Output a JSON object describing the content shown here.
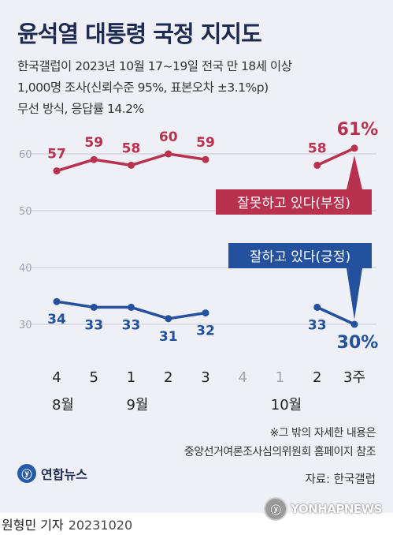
{
  "title": "윤석열 대통령 국정 지지도",
  "subtitle_lines": [
    "한국갤럽이 2023년 10월 17~19일 전국 만 18세 이상",
    "1,000명 조사(신뢰수준 95%, 표본오차 ±3.1%p)",
    "무선 방식, 응답률 14.2%"
  ],
  "chart_data": {
    "type": "line",
    "yticks": [
      30,
      40,
      50,
      60
    ],
    "ylim": [
      27,
      66
    ],
    "grid": true,
    "x_labels": [
      "4",
      "5",
      "1",
      "2",
      "3",
      "4",
      "1",
      "2",
      "3주"
    ],
    "month_labels": [
      {
        "label": "8월",
        "at": 0
      },
      {
        "label": "9월",
        "at": 2
      },
      {
        "label": "10월",
        "at": 6
      }
    ],
    "series": [
      {
        "name": "잘못하고 있다(부정)",
        "color": "#b8314e",
        "segments": [
          {
            "x": [
              0,
              1,
              2,
              3,
              4
            ],
            "values": [
              57,
              59,
              58,
              60,
              59
            ]
          },
          {
            "x": [
              7,
              8
            ],
            "values": [
              58,
              61
            ]
          }
        ],
        "value_labels": [
          "57",
          "59",
          "58",
          "60",
          "59",
          "58",
          "61%"
        ]
      },
      {
        "name": "잘하고 있다(긍정)",
        "color": "#23519e",
        "segments": [
          {
            "x": [
              0,
              1,
              2,
              3,
              4
            ],
            "values": [
              34,
              33,
              33,
              31,
              32
            ]
          },
          {
            "x": [
              7,
              8
            ],
            "values": [
              33,
              30
            ]
          }
        ],
        "value_labels": [
          "34",
          "33",
          "33",
          "31",
          "32",
          "33",
          "30%"
        ]
      }
    ]
  },
  "notes": [
    "※그 밖의 자세한 내용은",
    "중앙선거여론조사심의위원회 홈페이지 참조"
  ],
  "logo_text": "연합뉴스",
  "source": "자료: 한국갤럽",
  "watermark": "YONHAPNEWS",
  "byline": {
    "author": "원형민 기자",
    "date": "20231020"
  }
}
